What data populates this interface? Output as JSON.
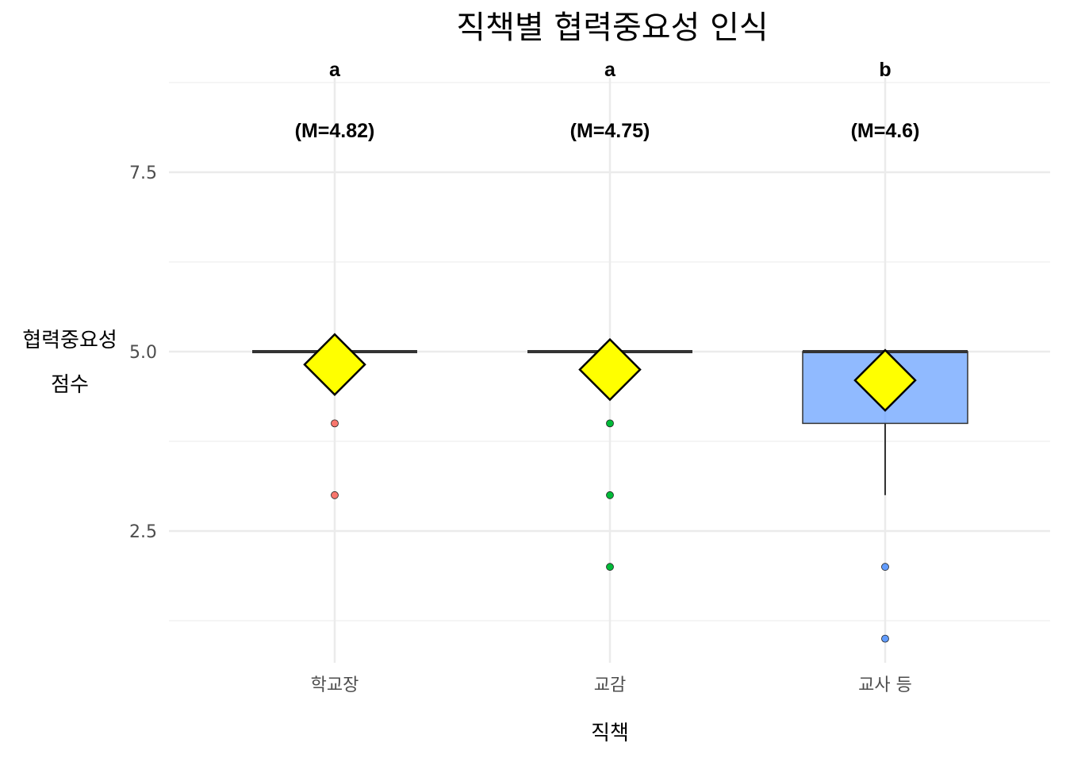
{
  "chart_data": {
    "type": "box",
    "title": "직책별 협력중요성 인식",
    "xlabel": "직책",
    "ylabel_lines": [
      "협력중요성",
      "점수"
    ],
    "categories": [
      "학교장",
      "교감",
      "교사 등"
    ],
    "ylim": [
      0.75,
      8.75
    ],
    "yticks": [
      2.5,
      5.0,
      7.5
    ],
    "ytick_labels": [
      "2.5",
      "5.0",
      "7.5"
    ],
    "grid": true,
    "boxes": [
      {
        "category": "학교장",
        "q1": 5,
        "median": 5,
        "q3": 5,
        "whisker_low": 5,
        "whisker_high": 5,
        "mean": 4.82,
        "outliers": [
          4,
          3
        ],
        "fill": "#F8766D",
        "letter": "a",
        "mean_label": "(M=4.82)"
      },
      {
        "category": "교감",
        "q1": 5,
        "median": 5,
        "q3": 5,
        "whisker_low": 5,
        "whisker_high": 5,
        "mean": 4.75,
        "outliers": [
          4,
          3,
          2
        ],
        "fill": "#00BA38",
        "letter": "a",
        "mean_label": "(M=4.75)"
      },
      {
        "category": "교사 등",
        "q1": 4,
        "median": 5,
        "q3": 5,
        "whisker_low": 3,
        "whisker_high": 5,
        "mean": 4.6,
        "outliers": [
          2,
          1
        ],
        "fill": "#619CFF",
        "letter": "b",
        "mean_label": "(M=4.6)"
      }
    ],
    "mean_marker_color": "#FFFF00"
  }
}
